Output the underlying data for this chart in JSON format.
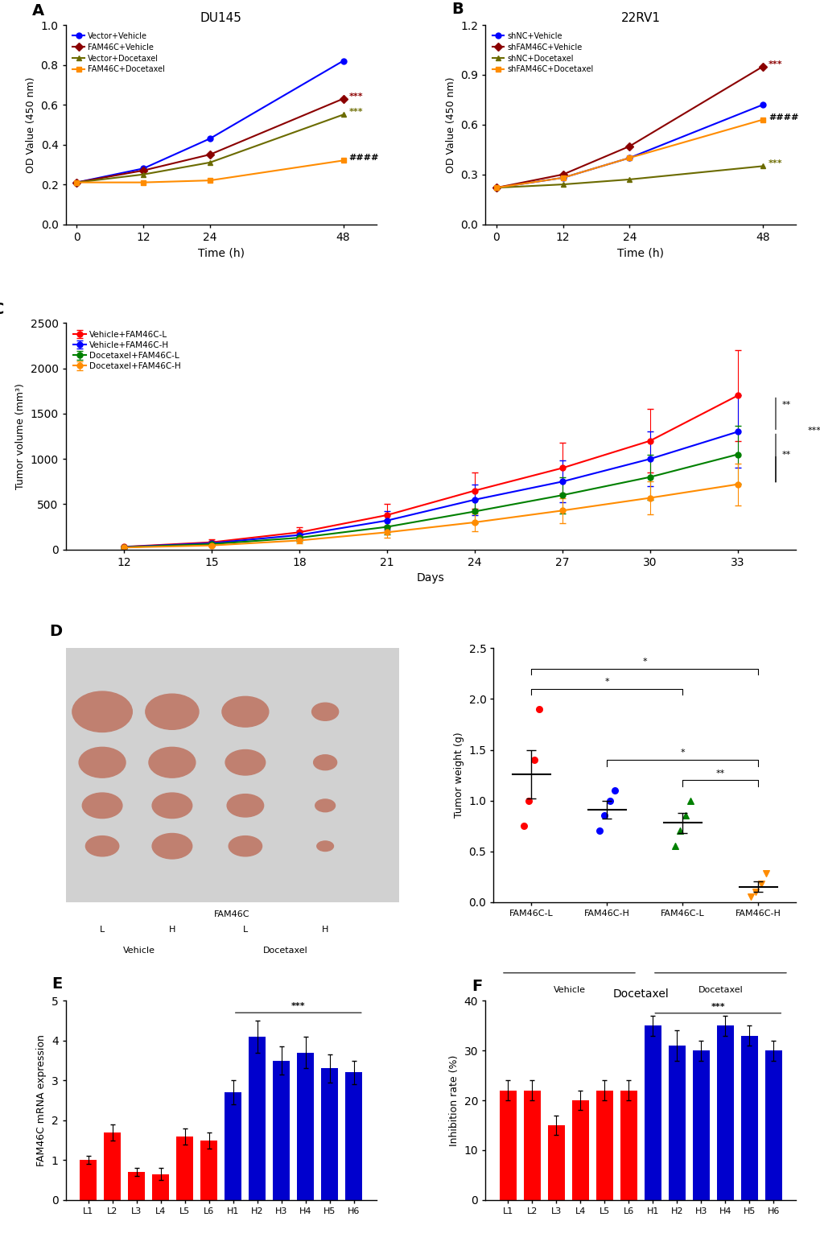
{
  "panel_A": {
    "title": "DU145",
    "xlabel": "Time (h)",
    "ylabel": "OD Value (450 nm)",
    "ylim": [
      0.0,
      1.0
    ],
    "yticks": [
      0.0,
      0.2,
      0.4,
      0.6,
      0.8,
      1.0
    ],
    "xticks": [
      0,
      12,
      24,
      48
    ],
    "series": [
      {
        "label": "Vector+Vehicle",
        "color": "#0000FF",
        "marker": "o",
        "x": [
          0,
          12,
          24,
          48
        ],
        "y": [
          0.21,
          0.28,
          0.43,
          0.82
        ]
      },
      {
        "label": "FAM46C+Vehicle",
        "color": "#8B0000",
        "marker": "D",
        "x": [
          0,
          12,
          24,
          48
        ],
        "y": [
          0.21,
          0.27,
          0.35,
          0.63
        ]
      },
      {
        "label": "Vector+Docetaxel",
        "color": "#6B6B00",
        "marker": "^",
        "x": [
          0,
          12,
          24,
          48
        ],
        "y": [
          0.21,
          0.25,
          0.31,
          0.55
        ]
      },
      {
        "label": "FAM46C+Docetaxel",
        "color": "#FF8C00",
        "marker": "s",
        "x": [
          0,
          12,
          24,
          48
        ],
        "y": [
          0.21,
          0.21,
          0.22,
          0.32
        ]
      }
    ],
    "annotations": [
      "***",
      "***",
      "####"
    ]
  },
  "panel_B": {
    "title": "22RV1",
    "xlabel": "Time (h)",
    "ylabel": "OD Value (450 nm)",
    "ylim": [
      0.0,
      1.2
    ],
    "yticks": [
      0.0,
      0.3,
      0.6,
      0.9,
      1.2
    ],
    "xticks": [
      0,
      12,
      24,
      48
    ],
    "series": [
      {
        "label": "shNC+Vehicle",
        "color": "#0000FF",
        "marker": "o",
        "x": [
          0,
          12,
          24,
          48
        ],
        "y": [
          0.22,
          0.28,
          0.4,
          0.72
        ]
      },
      {
        "label": "shFAM46C+Vehicle",
        "color": "#8B0000",
        "marker": "D",
        "x": [
          0,
          12,
          24,
          48
        ],
        "y": [
          0.22,
          0.3,
          0.47,
          0.95
        ]
      },
      {
        "label": "shNC+Docetaxel",
        "color": "#6B6B00",
        "marker": "^",
        "x": [
          0,
          12,
          24,
          48
        ],
        "y": [
          0.22,
          0.24,
          0.27,
          0.35
        ]
      },
      {
        "label": "shFAM46C+Docetaxel",
        "color": "#FF8C00",
        "marker": "s",
        "x": [
          0,
          12,
          24,
          48
        ],
        "y": [
          0.22,
          0.28,
          0.4,
          0.63
        ]
      }
    ],
    "annotations": [
      "***",
      "####",
      "***"
    ]
  },
  "panel_C": {
    "xlabel": "Days",
    "ylabel": "Tumor volume (mm³)",
    "ylim": [
      0,
      2500
    ],
    "yticks": [
      0,
      500,
      1000,
      1500,
      2000,
      2500
    ],
    "xticks": [
      12,
      15,
      18,
      21,
      24,
      27,
      30,
      33
    ],
    "series": [
      {
        "label": "Vehicle+FAM46C-L",
        "color": "#FF0000",
        "marker": "o",
        "x": [
          12,
          15,
          18,
          21,
          24,
          27,
          30,
          33
        ],
        "y": [
          30,
          80,
          190,
          380,
          650,
          900,
          1200,
          1700
        ],
        "yerr": [
          10,
          30,
          60,
          120,
          200,
          280,
          350,
          500
        ]
      },
      {
        "label": "Vehicle+FAM46C-H",
        "color": "#0000FF",
        "marker": "o",
        "x": [
          12,
          15,
          18,
          21,
          24,
          27,
          30,
          33
        ],
        "y": [
          28,
          70,
          160,
          320,
          550,
          750,
          1000,
          1300
        ],
        "yerr": [
          8,
          25,
          50,
          100,
          170,
          230,
          300,
          400
        ]
      },
      {
        "label": "Docetaxel+FAM46C-L",
        "color": "#008000",
        "marker": "^",
        "x": [
          12,
          15,
          18,
          21,
          24,
          27,
          30,
          33
        ],
        "y": [
          25,
          60,
          130,
          250,
          420,
          600,
          800,
          1050
        ],
        "yerr": [
          8,
          20,
          40,
          80,
          130,
          200,
          250,
          320
        ]
      },
      {
        "label": "Docetaxel+FAM46C-H",
        "color": "#FF8C00",
        "marker": "s",
        "x": [
          12,
          15,
          18,
          21,
          24,
          27,
          30,
          33
        ],
        "y": [
          22,
          45,
          100,
          190,
          300,
          430,
          570,
          720
        ],
        "yerr": [
          7,
          15,
          30,
          60,
          100,
          140,
          180,
          230
        ]
      }
    ]
  },
  "panel_D_scatter": {
    "xlabel_groups": [
      "FAM46C-L",
      "FAM46C-H",
      "FAM46C-L",
      "FAM46C-H"
    ],
    "group_labels": [
      "Vehicle",
      "Docetaxel"
    ],
    "ylabel": "Tumor weight (g)",
    "ylim": [
      0.0,
      2.5
    ],
    "yticks": [
      0.0,
      0.5,
      1.0,
      1.5,
      2.0,
      2.5
    ],
    "groups": [
      {
        "label": "FAM46C-L",
        "group": "Vehicle",
        "color": "#FF0000",
        "points": [
          0.75,
          1.0,
          1.4,
          1.9
        ],
        "mean": 1.26,
        "sem": 0.24
      },
      {
        "label": "FAM46C-H",
        "group": "Vehicle",
        "color": "#0000FF",
        "points": [
          0.7,
          0.85,
          1.0,
          1.1
        ],
        "mean": 0.91,
        "sem": 0.09
      },
      {
        "label": "FAM46C-L",
        "group": "Docetaxel",
        "color": "#008000",
        "points": [
          0.55,
          0.7,
          0.85,
          1.0
        ],
        "mean": 0.78,
        "sem": 0.1
      },
      {
        "label": "FAM46C-H",
        "group": "Docetaxel",
        "color": "#FF8C00",
        "points": [
          0.05,
          0.1,
          0.18,
          0.28
        ],
        "mean": 0.15,
        "sem": 0.05
      }
    ],
    "significance": [
      {
        "x1": 0,
        "x2": 2,
        "y": 2.15,
        "label": "*"
      },
      {
        "x1": 0,
        "x2": 3,
        "y": 2.35,
        "label": "*"
      },
      {
        "x1": 2,
        "x2": 3,
        "y": 1.25,
        "label": "**"
      },
      {
        "x1": 1,
        "x2": 3,
        "y": 1.45,
        "label": "*"
      }
    ]
  },
  "panel_E": {
    "ylabel": "FAM46C mRNA expression",
    "categories_L": [
      "L1",
      "L2",
      "L3",
      "L4",
      "L5",
      "L6"
    ],
    "categories_H": [
      "H1",
      "H2",
      "H3",
      "H4",
      "H5",
      "H6"
    ],
    "values_L": [
      1.0,
      1.7,
      0.7,
      0.65,
      1.6,
      1.5
    ],
    "values_H": [
      2.7,
      4.1,
      3.5,
      3.7,
      3.3,
      3.2
    ],
    "errors_L": [
      0.1,
      0.2,
      0.1,
      0.15,
      0.2,
      0.2
    ],
    "errors_H": [
      0.3,
      0.4,
      0.35,
      0.4,
      0.35,
      0.3
    ],
    "color_L": "#FF0000",
    "color_H": "#0000CD",
    "ylim": [
      0,
      5
    ],
    "yticks": [
      0,
      1,
      2,
      3,
      4,
      5
    ]
  },
  "panel_F": {
    "title": "Docetaxel",
    "ylabel": "Inhibition rate (%)",
    "categories_L": [
      "L1",
      "L2",
      "L3",
      "L4",
      "L5",
      "L6"
    ],
    "categories_H": [
      "H1",
      "H2",
      "H3",
      "H4",
      "H5",
      "H6"
    ],
    "values_L": [
      22,
      22,
      15,
      20,
      22,
      22
    ],
    "values_H": [
      35,
      31,
      30,
      35,
      33,
      30
    ],
    "errors_L": [
      2,
      2,
      2,
      2,
      2,
      2
    ],
    "errors_H": [
      2,
      3,
      2,
      2,
      2,
      2
    ],
    "color_L": "#FF0000",
    "color_H": "#0000CD",
    "ylim": [
      0,
      40
    ],
    "yticks": [
      0,
      10,
      20,
      30,
      40
    ]
  }
}
